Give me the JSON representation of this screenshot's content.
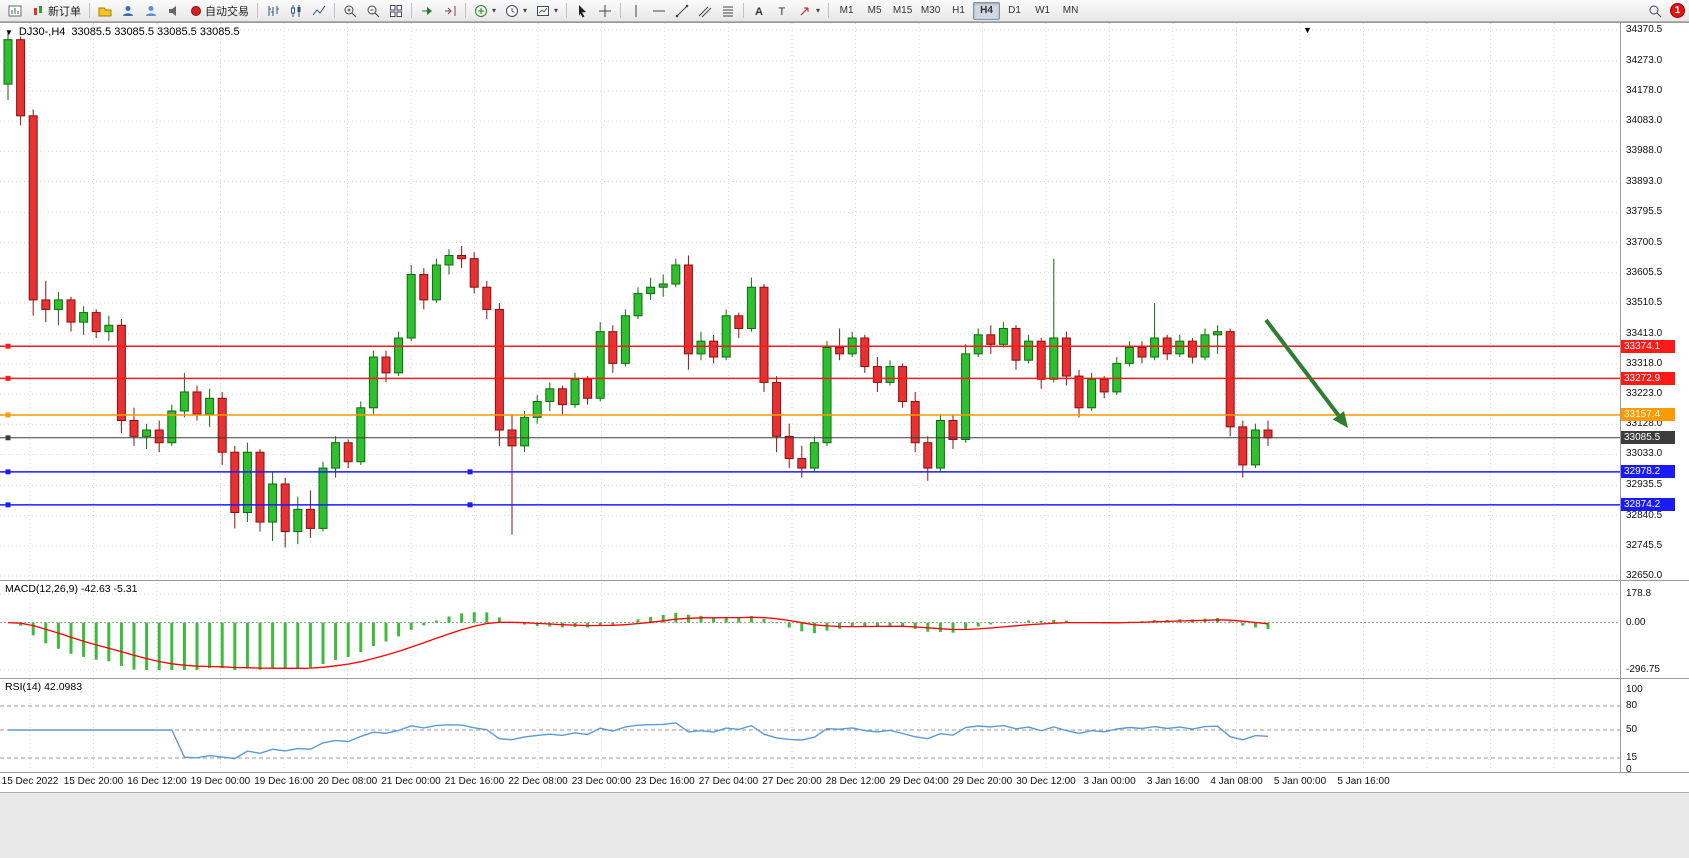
{
  "toolbar": {
    "new_order_label": "新订单",
    "auto_trading_label": "自动交易",
    "timeframes": [
      "M1",
      "M5",
      "M15",
      "M30",
      "H1",
      "H4",
      "D1",
      "W1",
      "MN"
    ],
    "active_timeframe": "H4",
    "notification_count": "1"
  },
  "chart": {
    "symbol_period": "DJ30-,H4",
    "ohlc": "33085.5 33085.5 33085.5 33085.5",
    "price_axis": [
      "34370.5",
      "34273.0",
      "34178.0",
      "34083.0",
      "33988.0",
      "33893.0",
      "33795.5",
      "33700.5",
      "33605.5",
      "33510.5",
      "33413.0",
      "33318.0",
      "33223.0",
      "33128.0",
      "33033.0",
      "32935.5",
      "32840.5",
      "32745.5",
      "32650.0"
    ],
    "time_axis": [
      "15 Dec 2022",
      "15 Dec 20:00",
      "16 Dec 12:00",
      "19 Dec 00:00",
      "19 Dec 16:00",
      "20 Dec 08:00",
      "21 Dec 00:00",
      "21 Dec 16:00",
      "22 Dec 08:00",
      "23 Dec 00:00",
      "23 Dec 16:00",
      "27 Dec 04:00",
      "27 Dec 20:00",
      "28 Dec 12:00",
      "29 Dec 04:00",
      "29 Dec 20:00",
      "30 Dec 12:00",
      "3 Jan 00:00",
      "3 Jan 16:00",
      "4 Jan 08:00",
      "5 Jan 00:00",
      "5 Jan 16:00"
    ],
    "levels": [
      {
        "label": "33374.1",
        "price": 33374.1,
        "color": "#ff1a1a",
        "type": "resistance-line"
      },
      {
        "label": "33272.9",
        "price": 33272.9,
        "color": "#ff1a1a",
        "type": "resistance-line"
      },
      {
        "label": "33157.4",
        "price": 33157.4,
        "color": "#ff9900",
        "type": "pivot-line"
      },
      {
        "label": "33085.5",
        "price": 33085.5,
        "color": "#3d3d3d",
        "type": "current-price-line",
        "current": true
      },
      {
        "label": "32978.2",
        "price": 32978.2,
        "color": "#1a1aff",
        "type": "support-line",
        "handles": true
      },
      {
        "label": "32874.2",
        "price": 32874.2,
        "color": "#1a1aff",
        "type": "support-line",
        "handles": true
      }
    ]
  },
  "indicators": {
    "macd": {
      "label": "MACD(12,26,9) -42.63 -5.31",
      "axis": [
        "178.8",
        "0.00",
        "-296.75"
      ],
      "max": 178.8,
      "min": -296.75
    },
    "rsi": {
      "label": "RSI(14) 42.0983",
      "axis": [
        "100",
        "80",
        "50",
        "15",
        "0"
      ],
      "levels": [
        80,
        50,
        15
      ]
    }
  },
  "colors": {
    "candle_up": "#2fbf2f",
    "candle_up_stroke": "#0e6b0e",
    "candle_down": "#e63232",
    "candle_down_stroke": "#8c1010",
    "macd_hist": "#3dbb3d",
    "macd_signal": "#ff0000",
    "rsi_line": "#5b9bd5",
    "arrow": "#2e7d32",
    "grid": "#d8d8d8"
  },
  "chart_data": {
    "type": "candlestick",
    "symbol": "DJ30-",
    "timeframe": "H4",
    "price_range": [
      32650.0,
      34370.5
    ],
    "ohlc_candles": [
      [
        34200,
        34370,
        34150,
        34340
      ],
      [
        34340,
        34350,
        34070,
        34100
      ],
      [
        34100,
        34120,
        33470,
        33520
      ],
      [
        33520,
        33580,
        33450,
        33490
      ],
      [
        33490,
        33545,
        33440,
        33520
      ],
      [
        33520,
        33530,
        33420,
        33450
      ],
      [
        33450,
        33500,
        33410,
        33480
      ],
      [
        33480,
        33490,
        33400,
        33420
      ],
      [
        33420,
        33470,
        33390,
        33440
      ],
      [
        33440,
        33460,
        33100,
        33140
      ],
      [
        33140,
        33180,
        33060,
        33090
      ],
      [
        33090,
        33130,
        33050,
        33110
      ],
      [
        33110,
        33140,
        33040,
        33070
      ],
      [
        33070,
        33190,
        33060,
        33170
      ],
      [
        33170,
        33290,
        33150,
        33230
      ],
      [
        33230,
        33250,
        33140,
        33160
      ],
      [
        33160,
        33240,
        33120,
        33210
      ],
      [
        33210,
        33230,
        33000,
        33040
      ],
      [
        33040,
        33060,
        32800,
        32850
      ],
      [
        32850,
        33070,
        32820,
        33040
      ],
      [
        33040,
        33050,
        32790,
        32820
      ],
      [
        32820,
        32980,
        32760,
        32940
      ],
      [
        32940,
        32960,
        32740,
        32790
      ],
      [
        32790,
        32900,
        32750,
        32860
      ],
      [
        32860,
        32920,
        32770,
        32800
      ],
      [
        32800,
        33010,
        32790,
        32990
      ],
      [
        32990,
        33090,
        32960,
        33070
      ],
      [
        33070,
        33080,
        32990,
        33010
      ],
      [
        33010,
        33200,
        33000,
        33180
      ],
      [
        33180,
        33360,
        33160,
        33340
      ],
      [
        33340,
        33360,
        33260,
        33290
      ],
      [
        33290,
        33420,
        33280,
        33400
      ],
      [
        33400,
        33630,
        33390,
        33600
      ],
      [
        33600,
        33620,
        33490,
        33520
      ],
      [
        33520,
        33650,
        33510,
        33630
      ],
      [
        33630,
        33680,
        33600,
        33660
      ],
      [
        33660,
        33690,
        33620,
        33650
      ],
      [
        33650,
        33670,
        33540,
        33560
      ],
      [
        33560,
        33580,
        33460,
        33490
      ],
      [
        33490,
        33510,
        33060,
        33110
      ],
      [
        33110,
        33160,
        32780,
        33060
      ],
      [
        33060,
        33170,
        33040,
        33150
      ],
      [
        33150,
        33220,
        33130,
        33200
      ],
      [
        33200,
        33260,
        33170,
        33240
      ],
      [
        33240,
        33250,
        33160,
        33190
      ],
      [
        33190,
        33290,
        33180,
        33270
      ],
      [
        33270,
        33280,
        33190,
        33210
      ],
      [
        33210,
        33450,
        33200,
        33420
      ],
      [
        33420,
        33440,
        33290,
        33320
      ],
      [
        33320,
        33490,
        33310,
        33470
      ],
      [
        33470,
        33560,
        33460,
        33540
      ],
      [
        33540,
        33590,
        33520,
        33560
      ],
      [
        33560,
        33600,
        33530,
        33570
      ],
      [
        33570,
        33650,
        33560,
        33630
      ],
      [
        33630,
        33660,
        33300,
        33350
      ],
      [
        33350,
        33420,
        33330,
        33390
      ],
      [
        33390,
        33410,
        33320,
        33340
      ],
      [
        33340,
        33490,
        33330,
        33470
      ],
      [
        33470,
        33480,
        33400,
        33430
      ],
      [
        33430,
        33590,
        33420,
        33560
      ],
      [
        33560,
        33570,
        33230,
        33260
      ],
      [
        33260,
        33280,
        33040,
        33090
      ],
      [
        33090,
        33130,
        32990,
        33020
      ],
      [
        33020,
        33060,
        32960,
        32990
      ],
      [
        32990,
        33090,
        32980,
        33070
      ],
      [
        33070,
        33390,
        33060,
        33370
      ],
      [
        33370,
        33430,
        33330,
        33350
      ],
      [
        33350,
        33420,
        33340,
        33400
      ],
      [
        33400,
        33410,
        33290,
        33310
      ],
      [
        33310,
        33340,
        33230,
        33260
      ],
      [
        33260,
        33330,
        33250,
        33310
      ],
      [
        33310,
        33320,
        33180,
        33200
      ],
      [
        33200,
        33230,
        33040,
        33070
      ],
      [
        33070,
        33090,
        32950,
        32990
      ],
      [
        32990,
        33160,
        32980,
        33140
      ],
      [
        33140,
        33160,
        33050,
        33080
      ],
      [
        33080,
        33380,
        33070,
        33350
      ],
      [
        33350,
        33430,
        33340,
        33410
      ],
      [
        33410,
        33440,
        33350,
        33380
      ],
      [
        33380,
        33450,
        33370,
        33430
      ],
      [
        33430,
        33440,
        33300,
        33330
      ],
      [
        33330,
        33410,
        33320,
        33390
      ],
      [
        33390,
        33400,
        33240,
        33270
      ],
      [
        33270,
        33650,
        33260,
        33400
      ],
      [
        33400,
        33420,
        33250,
        33280
      ],
      [
        33280,
        33300,
        33150,
        33180
      ],
      [
        33180,
        33290,
        33170,
        33270
      ],
      [
        33270,
        33280,
        33210,
        33230
      ],
      [
        33230,
        33340,
        33220,
        33320
      ],
      [
        33320,
        33390,
        33310,
        33370
      ],
      [
        33370,
        33390,
        33320,
        33340
      ],
      [
        33340,
        33510,
        33330,
        33400
      ],
      [
        33400,
        33410,
        33330,
        33350
      ],
      [
        33350,
        33410,
        33340,
        33390
      ],
      [
        33390,
        33400,
        33320,
        33340
      ],
      [
        33340,
        33430,
        33330,
        33410
      ],
      [
        33410,
        33440,
        33350,
        33420
      ],
      [
        33420,
        33430,
        33090,
        33120
      ],
      [
        33120,
        33140,
        32960,
        33000
      ],
      [
        33000,
        33130,
        32990,
        33110
      ],
      [
        33110,
        33140,
        33060,
        33085.5
      ]
    ]
  }
}
